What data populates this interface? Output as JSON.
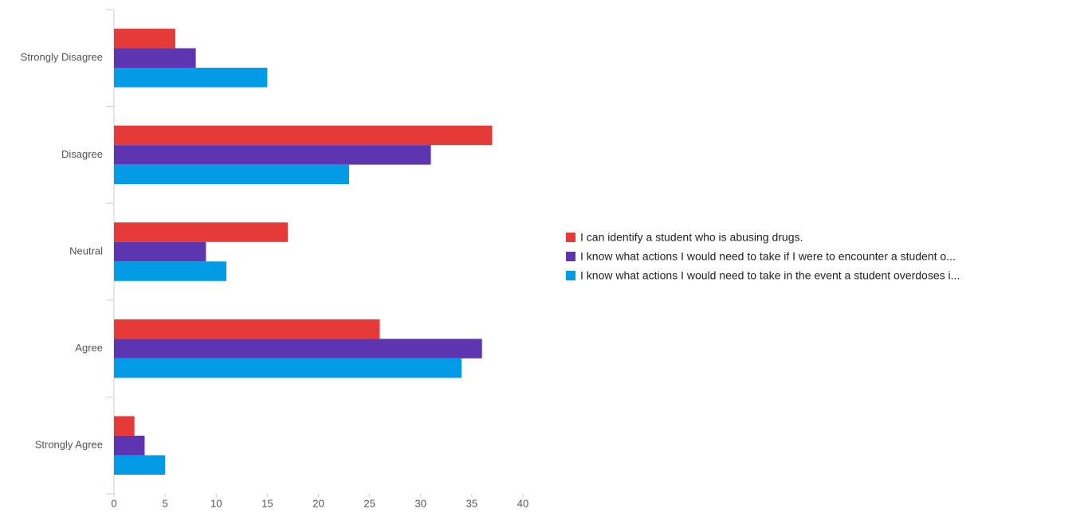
{
  "chart_data": {
    "type": "bar",
    "orientation": "horizontal",
    "categories": [
      "Strongly Disagree",
      "Disagree",
      "Neutral",
      "Agree",
      "Strongly Agree"
    ],
    "series": [
      {
        "name": "I can identify a student who is abusing drugs.",
        "color": "#e53a37",
        "values": [
          6,
          37,
          17,
          26,
          2
        ]
      },
      {
        "name": "I know what actions I would need to take if I were to encounter a student o...",
        "color": "#5e35b1",
        "values": [
          8,
          31,
          9,
          36,
          3
        ]
      },
      {
        "name": "I know what actions I would need to take in the event a student overdoses i...",
        "color": "#039be5",
        "values": [
          15,
          23,
          11,
          34,
          5
        ]
      }
    ],
    "xlim": [
      0,
      40
    ],
    "xticks": [
      0,
      5,
      10,
      15,
      20,
      25,
      30,
      35,
      40
    ],
    "grid": false,
    "legend": "right"
  }
}
